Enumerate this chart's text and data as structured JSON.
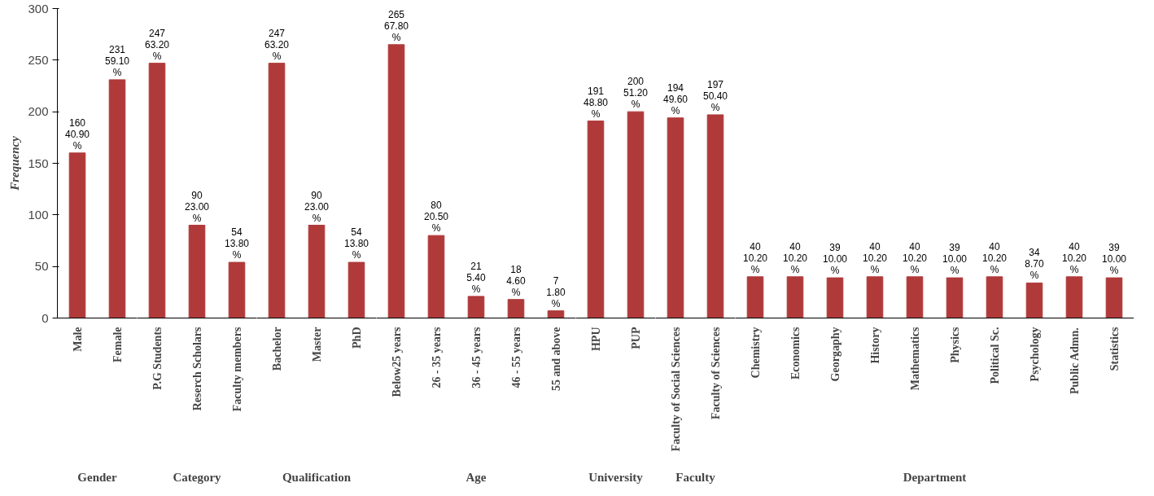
{
  "chart_data": [
    {
      "type": "bar",
      "ylabel": "Frequency",
      "xlabel": "Gender",
      "categories": [
        "Male",
        "Female"
      ],
      "values": [
        160,
        231
      ],
      "value_labels": [
        "160\n40.90\n%",
        "231\n59.10\n%"
      ],
      "color": "#b03a3a",
      "ylim": [
        0,
        300
      ],
      "yticks": [
        0,
        50,
        100,
        150,
        200,
        250,
        300
      ],
      "grid": false
    },
    {
      "type": "bar",
      "xlabel": "Category",
      "categories": [
        "P.G Students",
        "Reserch Scholars",
        "Faculty members"
      ],
      "values": [
        247,
        90,
        54
      ],
      "value_labels": [
        "247\n63.20\n%",
        "90\n23.00\n%",
        "54\n13.80\n%"
      ],
      "color": "#b03a3a",
      "ylim": [
        0,
        300
      ],
      "yticks": [
        0,
        50,
        100,
        150,
        200,
        250,
        300
      ],
      "grid": false,
      "tick_labels": "x"
    },
    {
      "type": "bar",
      "xlabel": "Qualification",
      "categories": [
        "Bachelor",
        "Master",
        "PhD"
      ],
      "values": [
        247,
        90,
        54
      ],
      "value_labels": [
        "247\n63.20\n%",
        "90\n23.00\n%",
        "54\n13.80\n%"
      ],
      "color": "#b03a3a",
      "ylim": [
        0,
        300
      ],
      "yticks": [
        0,
        50,
        100,
        150,
        200,
        250,
        300
      ],
      "grid": false,
      "tick_labels": "x"
    },
    {
      "type": "bar",
      "xlabel": "Age",
      "categories": [
        "Below25 years",
        "26 - 35 years",
        "36 - 45 years",
        "46 - 55 years",
        "55 and above"
      ],
      "values": [
        265,
        80,
        21,
        18,
        7
      ],
      "value_labels": [
        "265\n67.80\n%",
        "80\n20.50\n%",
        "21\n5.40\n%",
        "18\n4.60\n%",
        "7\n1.80\n%"
      ],
      "color": "#b03a3a",
      "ylim": [
        0,
        300
      ],
      "yticks": [
        0,
        50,
        100,
        150,
        200,
        250,
        300
      ],
      "grid": false,
      "tick_labels": "x"
    },
    {
      "type": "bar",
      "xlabel": "University",
      "categories": [
        "HPU",
        "PUP"
      ],
      "values": [
        191,
        200
      ],
      "value_labels": [
        "191\n48.80\n%",
        "200\n51.20\n%"
      ],
      "color": "#b03a3a",
      "ylim": [
        0,
        300
      ],
      "yticks": [
        0,
        50,
        100,
        150,
        200,
        250,
        300
      ],
      "grid": false,
      "tick_labels": "x"
    },
    {
      "type": "bar",
      "xlabel": "Faculty",
      "categories": [
        "Faculty of Social Sciences",
        "Faculty of Sciences"
      ],
      "values": [
        194,
        197
      ],
      "value_labels": [
        "194\n49.60\n%",
        "197\n50.40\n%"
      ],
      "color": "#b03a3a",
      "ylim": [
        0,
        300
      ],
      "yticks": [
        0,
        50,
        100,
        150,
        200,
        250,
        300
      ],
      "grid": false,
      "tick_labels": "x"
    },
    {
      "type": "bar",
      "xlabel": "Department",
      "categories": [
        "Chemistry",
        "Economics",
        "Georgaphy",
        "History",
        "Mathematics",
        "Physics",
        "Political Sc.",
        "Psychology",
        "Public Admn.",
        "Statistics"
      ],
      "values": [
        40,
        40,
        39,
        40,
        40,
        39,
        40,
        34,
        40,
        39
      ],
      "value_labels": [
        "40\n10.20\n%",
        "40\n10.20\n%",
        "39\n10.00\n%",
        "40\n10.20\n%",
        "40\n10.20\n%",
        "39\n10.00\n%",
        "40\n10.20\n%",
        "34\n8.70\n%",
        "40\n10.20\n%",
        "39\n10.00\n%"
      ],
      "color": "#b03a3a",
      "ylim": [
        0,
        300
      ],
      "yticks": [
        0,
        50,
        100,
        150,
        200,
        250,
        300
      ],
      "grid": false,
      "tick_labels": "x"
    }
  ]
}
